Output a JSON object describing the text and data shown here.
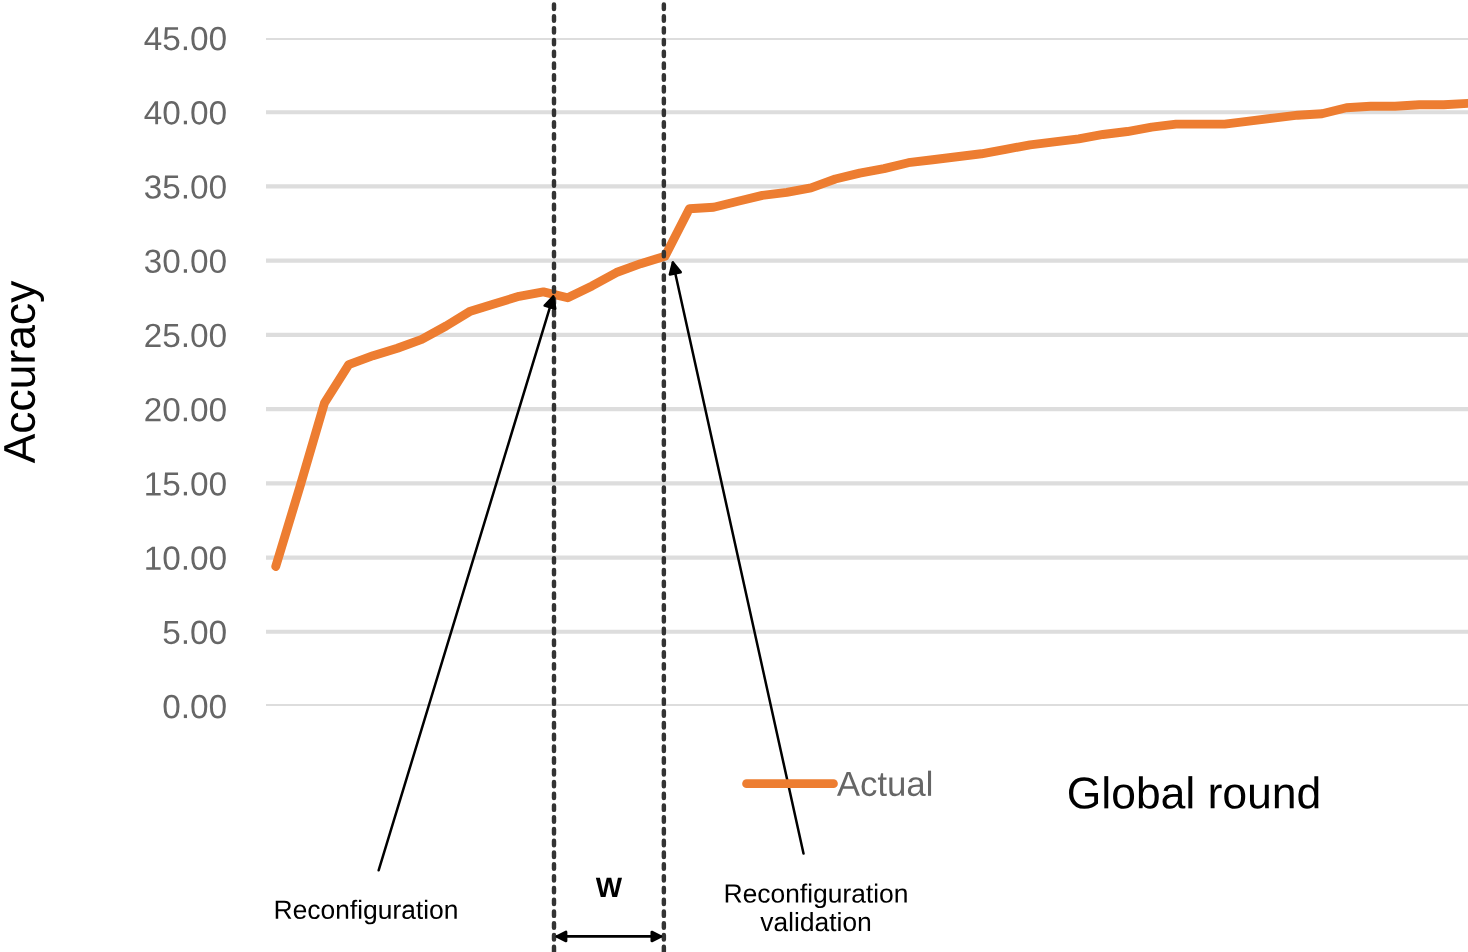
{
  "chart_data": {
    "type": "line",
    "ylabel": "Accuracy",
    "xlabel": "Global round",
    "categories": [
      null,
      null,
      null,
      null,
      null,
      null,
      null,
      null,
      null,
      null,
      null,
      null,
      null,
      null,
      null,
      null,
      null,
      null,
      null,
      null,
      null,
      null,
      null,
      null,
      null,
      null,
      null,
      null,
      null,
      null,
      null,
      null,
      null,
      null,
      null,
      null,
      null,
      null,
      null,
      null,
      null,
      null,
      null,
      null,
      null,
      null,
      null,
      null,
      null,
      null
    ],
    "series": [
      {
        "name": "Actual",
        "color": "#ed7d31",
        "values": [
          9.4,
          14.8,
          20.4,
          23.0,
          23.6,
          24.1,
          24.7,
          25.6,
          26.6,
          27.1,
          27.6,
          27.9,
          27.5,
          28.3,
          29.2,
          29.8,
          30.3,
          33.5,
          33.6,
          34.0,
          34.4,
          34.6,
          34.9,
          35.5,
          35.9,
          36.2,
          36.6,
          36.8,
          37.0,
          37.2,
          37.5,
          37.8,
          38.0,
          38.2,
          38.5,
          38.7,
          39.0,
          39.2,
          39.2,
          39.2,
          39.4,
          39.6,
          39.8,
          39.9,
          40.3,
          40.4,
          40.4,
          40.5,
          40.5,
          40.6
        ]
      }
    ],
    "ylim": [
      0,
      45
    ],
    "yticks": [
      {
        "value": 0,
        "label": "0.00"
      },
      {
        "value": 5,
        "label": "5.00"
      },
      {
        "value": 10,
        "label": "10.00"
      },
      {
        "value": 15,
        "label": "15.00"
      },
      {
        "value": 20,
        "label": "20.00"
      },
      {
        "value": 25,
        "label": "25.00"
      },
      {
        "value": 30,
        "label": "30.00"
      },
      {
        "value": 35,
        "label": "35.00"
      },
      {
        "value": 40,
        "label": "40.00"
      },
      {
        "value": 45,
        "label": "45.00"
      }
    ],
    "tick_labels": "y",
    "grid": "y",
    "legend": "bottom",
    "marker": "none",
    "line_style": "solid",
    "annotations": [
      "Reconfiguration",
      "Reconfiguration\nvalidation",
      "W"
    ]
  }
}
